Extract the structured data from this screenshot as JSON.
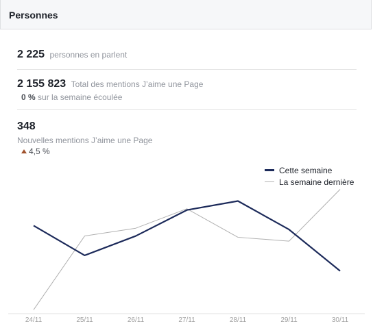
{
  "card": {
    "title": "Personnes"
  },
  "stats": {
    "talking": {
      "value": "2 225",
      "label": "personnes en parlent"
    },
    "total_likes": {
      "value": "2 155 823",
      "label": "Total des mentions J’aime une Page",
      "change": "0 %",
      "change_label": "sur la semaine écoulée"
    },
    "new_likes": {
      "value": "348",
      "label": "Nouvelles mentions J’aime une Page",
      "change": "4,5 %",
      "trend": "up"
    }
  },
  "colors": {
    "this_week": "#1c2a5a",
    "last_week": "#b0b0b0",
    "trend_up": "#a0522d"
  },
  "chart_data": {
    "type": "line",
    "categories": [
      "24/11",
      "25/11",
      "26/11",
      "27/11",
      "28/11",
      "29/11",
      "30/11"
    ],
    "series": [
      {
        "name": "Cette semaine",
        "values": [
          58,
          35,
          50,
          70,
          77,
          55,
          23
        ]
      },
      {
        "name": "La semaine dernière",
        "values": [
          -7,
          50,
          56,
          71,
          49,
          46,
          86
        ]
      }
    ],
    "ylim": [
      -10,
      100
    ],
    "grid": false,
    "legend": "top-right"
  }
}
